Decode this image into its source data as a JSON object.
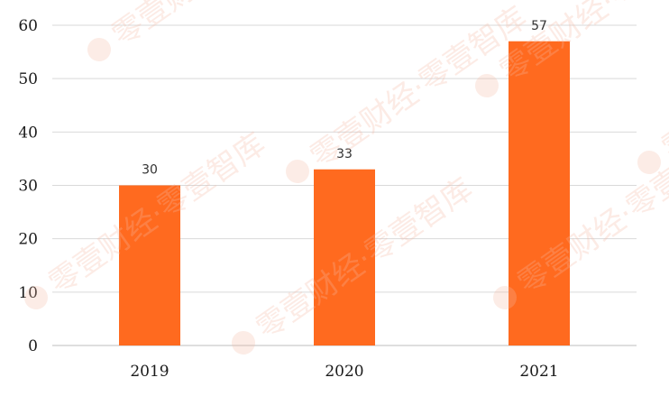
{
  "chart_data": {
    "type": "bar",
    "categories": [
      "2019",
      "2020",
      "2021"
    ],
    "values": [
      30,
      33,
      57
    ],
    "data_labels": [
      "30",
      "33",
      "57"
    ],
    "ylim": [
      0,
      60
    ],
    "yticks": [
      "0",
      "10",
      "20",
      "30",
      "40",
      "50",
      "60"
    ],
    "grid": true,
    "bar_color": "#ff6a1f",
    "title": "",
    "xlabel": "",
    "ylabel": ""
  },
  "watermark": {
    "text": "零壹财经·零壹智库"
  }
}
